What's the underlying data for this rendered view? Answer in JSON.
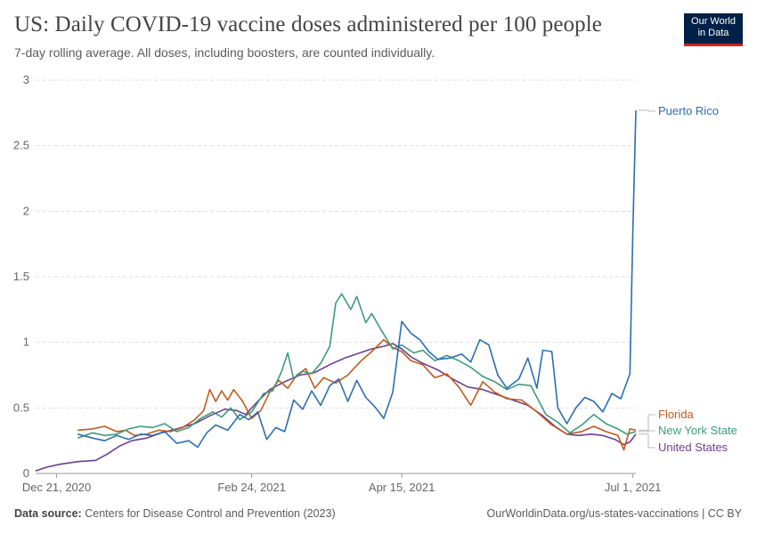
{
  "header": {
    "title": "US: Daily COVID-19 vaccine doses administered per 100 people",
    "subtitle": "7-day rolling average. All doses, including boosters, are counted individually."
  },
  "logo": {
    "line1": "Our World",
    "line2": "in Data"
  },
  "footer": {
    "source_label": "Data source:",
    "source_text": "Centers for Disease Control and Prevention (2023)",
    "url": "OurWorldinData.org/us-states-vaccinations | CC BY"
  },
  "chart_data": {
    "type": "line",
    "title": "US: Daily COVID-19 vaccine doses administered per 100 people",
    "subtitle": "7-day rolling average. All doses, including boosters, are counted individually.",
    "xlabel": "",
    "ylabel": "",
    "x_range": [
      "2020-12-14",
      "2021-07-02"
    ],
    "ylim": [
      0,
      3
    ],
    "yticks": [
      0,
      0.5,
      1,
      1.5,
      2,
      2.5,
      3
    ],
    "ytick_labels": [
      "0",
      "0.5",
      "1",
      "1.5",
      "2",
      "2.5",
      "3"
    ],
    "xticks": [
      {
        "date": "2020-12-21",
        "label": "Dec 21, 2020"
      },
      {
        "date": "2021-02-24",
        "label": "Feb 24, 2021"
      },
      {
        "date": "2021-04-15",
        "label": "Apr 15, 2021"
      },
      {
        "date": "2021-07-01",
        "label": "Jul 1, 2021"
      }
    ],
    "grid": true,
    "legend_position": "right (line-end labels)",
    "series": [
      {
        "name": "United States",
        "color": "#6d3e91",
        "points": [
          [
            "2020-12-14",
            0.02
          ],
          [
            "2020-12-18",
            0.05
          ],
          [
            "2020-12-22",
            0.07
          ],
          [
            "2020-12-28",
            0.09
          ],
          [
            "2021-01-03",
            0.1
          ],
          [
            "2021-01-07",
            0.15
          ],
          [
            "2021-01-11",
            0.21
          ],
          [
            "2021-01-15",
            0.25
          ],
          [
            "2021-01-20",
            0.27
          ],
          [
            "2021-01-25",
            0.31
          ],
          [
            "2021-01-30",
            0.34
          ],
          [
            "2021-02-05",
            0.38
          ],
          [
            "2021-02-10",
            0.44
          ],
          [
            "2021-02-15",
            0.49
          ],
          [
            "2021-02-19",
            0.48
          ],
          [
            "2021-02-22",
            0.45
          ],
          [
            "2021-02-26",
            0.55
          ],
          [
            "2021-03-02",
            0.64
          ],
          [
            "2021-03-07",
            0.7
          ],
          [
            "2021-03-12",
            0.75
          ],
          [
            "2021-03-17",
            0.77
          ],
          [
            "2021-03-22",
            0.83
          ],
          [
            "2021-03-27",
            0.88
          ],
          [
            "2021-04-01",
            0.92
          ],
          [
            "2021-04-05",
            0.95
          ],
          [
            "2021-04-09",
            0.97
          ],
          [
            "2021-04-12",
            0.99
          ],
          [
            "2021-04-15",
            0.95
          ],
          [
            "2021-04-18",
            0.89
          ],
          [
            "2021-04-22",
            0.84
          ],
          [
            "2021-04-27",
            0.79
          ],
          [
            "2021-05-02",
            0.72
          ],
          [
            "2021-05-07",
            0.66
          ],
          [
            "2021-05-12",
            0.64
          ],
          [
            "2021-05-17",
            0.6
          ],
          [
            "2021-05-22",
            0.56
          ],
          [
            "2021-05-27",
            0.52
          ],
          [
            "2021-06-01",
            0.44
          ],
          [
            "2021-06-05",
            0.36
          ],
          [
            "2021-06-09",
            0.3
          ],
          [
            "2021-06-13",
            0.29
          ],
          [
            "2021-06-17",
            0.3
          ],
          [
            "2021-06-21",
            0.29
          ],
          [
            "2021-06-25",
            0.26
          ],
          [
            "2021-06-28",
            0.22
          ],
          [
            "2021-06-30",
            0.24
          ],
          [
            "2021-07-02",
            0.3
          ]
        ]
      },
      {
        "name": "Florida",
        "color": "#c15a1c",
        "points": [
          [
            "2020-12-28",
            0.33
          ],
          [
            "2021-01-02",
            0.34
          ],
          [
            "2021-01-06",
            0.36
          ],
          [
            "2021-01-10",
            0.32
          ],
          [
            "2021-01-13",
            0.33
          ],
          [
            "2021-01-16",
            0.29
          ],
          [
            "2021-01-20",
            0.3
          ],
          [
            "2021-01-24",
            0.33
          ],
          [
            "2021-01-28",
            0.32
          ],
          [
            "2021-02-01",
            0.35
          ],
          [
            "2021-02-05",
            0.41
          ],
          [
            "2021-02-08",
            0.48
          ],
          [
            "2021-02-10",
            0.64
          ],
          [
            "2021-02-12",
            0.55
          ],
          [
            "2021-02-14",
            0.63
          ],
          [
            "2021-02-16",
            0.56
          ],
          [
            "2021-02-18",
            0.64
          ],
          [
            "2021-02-21",
            0.55
          ],
          [
            "2021-02-24",
            0.42
          ],
          [
            "2021-02-27",
            0.48
          ],
          [
            "2021-03-02",
            0.62
          ],
          [
            "2021-03-05",
            0.71
          ],
          [
            "2021-03-08",
            0.65
          ],
          [
            "2021-03-11",
            0.75
          ],
          [
            "2021-03-14",
            0.8
          ],
          [
            "2021-03-17",
            0.65
          ],
          [
            "2021-03-20",
            0.73
          ],
          [
            "2021-03-24",
            0.69
          ],
          [
            "2021-03-28",
            0.75
          ],
          [
            "2021-04-01",
            0.85
          ],
          [
            "2021-04-05",
            0.93
          ],
          [
            "2021-04-09",
            1.02
          ],
          [
            "2021-04-12",
            0.96
          ],
          [
            "2021-04-15",
            0.93
          ],
          [
            "2021-04-18",
            0.86
          ],
          [
            "2021-04-22",
            0.83
          ],
          [
            "2021-04-26",
            0.73
          ],
          [
            "2021-04-30",
            0.76
          ],
          [
            "2021-05-04",
            0.66
          ],
          [
            "2021-05-08",
            0.52
          ],
          [
            "2021-05-12",
            0.7
          ],
          [
            "2021-05-16",
            0.62
          ],
          [
            "2021-05-20",
            0.57
          ],
          [
            "2021-05-25",
            0.56
          ],
          [
            "2021-05-30",
            0.47
          ],
          [
            "2021-06-04",
            0.37
          ],
          [
            "2021-06-09",
            0.3
          ],
          [
            "2021-06-14",
            0.32
          ],
          [
            "2021-06-18",
            0.36
          ],
          [
            "2021-06-22",
            0.32
          ],
          [
            "2021-06-26",
            0.29
          ],
          [
            "2021-06-28",
            0.18
          ],
          [
            "2021-06-30",
            0.34
          ],
          [
            "2021-07-02",
            0.33
          ]
        ]
      },
      {
        "name": "New York State",
        "color": "#3c9c7b",
        "points": [
          [
            "2020-12-28",
            0.27
          ],
          [
            "2021-01-02",
            0.31
          ],
          [
            "2021-01-06",
            0.29
          ],
          [
            "2021-01-10",
            0.3
          ],
          [
            "2021-01-14",
            0.34
          ],
          [
            "2021-01-18",
            0.36
          ],
          [
            "2021-01-22",
            0.35
          ],
          [
            "2021-01-26",
            0.38
          ],
          [
            "2021-01-30",
            0.32
          ],
          [
            "2021-02-03",
            0.35
          ],
          [
            "2021-02-07",
            0.42
          ],
          [
            "2021-02-11",
            0.47
          ],
          [
            "2021-02-14",
            0.43
          ],
          [
            "2021-02-17",
            0.5
          ],
          [
            "2021-02-20",
            0.41
          ],
          [
            "2021-02-24",
            0.47
          ],
          [
            "2021-02-28",
            0.61
          ],
          [
            "2021-03-03",
            0.63
          ],
          [
            "2021-03-06",
            0.78
          ],
          [
            "2021-03-08",
            0.92
          ],
          [
            "2021-03-10",
            0.72
          ],
          [
            "2021-03-13",
            0.78
          ],
          [
            "2021-03-16",
            0.76
          ],
          [
            "2021-03-19",
            0.84
          ],
          [
            "2021-03-22",
            0.97
          ],
          [
            "2021-03-24",
            1.3
          ],
          [
            "2021-03-26",
            1.37
          ],
          [
            "2021-03-29",
            1.25
          ],
          [
            "2021-03-31",
            1.35
          ],
          [
            "2021-04-03",
            1.15
          ],
          [
            "2021-04-05",
            1.22
          ],
          [
            "2021-04-08",
            1.1
          ],
          [
            "2021-04-12",
            0.95
          ],
          [
            "2021-04-15",
            0.98
          ],
          [
            "2021-04-19",
            0.92
          ],
          [
            "2021-04-22",
            0.94
          ],
          [
            "2021-04-26",
            0.86
          ],
          [
            "2021-04-30",
            0.9
          ],
          [
            "2021-05-04",
            0.86
          ],
          [
            "2021-05-08",
            0.81
          ],
          [
            "2021-05-12",
            0.74
          ],
          [
            "2021-05-16",
            0.7
          ],
          [
            "2021-05-20",
            0.64
          ],
          [
            "2021-05-24",
            0.68
          ],
          [
            "2021-05-28",
            0.67
          ],
          [
            "2021-06-02",
            0.45
          ],
          [
            "2021-06-06",
            0.39
          ],
          [
            "2021-06-10",
            0.31
          ],
          [
            "2021-06-14",
            0.37
          ],
          [
            "2021-06-18",
            0.45
          ],
          [
            "2021-06-22",
            0.38
          ],
          [
            "2021-06-26",
            0.34
          ],
          [
            "2021-06-29",
            0.3
          ],
          [
            "2021-07-02",
            0.32
          ]
        ]
      },
      {
        "name": "Puerto Rico",
        "color": "#2c6db5",
        "points": [
          [
            "2020-12-28",
            0.3
          ],
          [
            "2021-01-02",
            0.27
          ],
          [
            "2021-01-06",
            0.25
          ],
          [
            "2021-01-10",
            0.29
          ],
          [
            "2021-01-14",
            0.26
          ],
          [
            "2021-01-18",
            0.3
          ],
          [
            "2021-01-22",
            0.29
          ],
          [
            "2021-01-26",
            0.32
          ],
          [
            "2021-01-30",
            0.23
          ],
          [
            "2021-02-03",
            0.25
          ],
          [
            "2021-02-06",
            0.2
          ],
          [
            "2021-02-09",
            0.31
          ],
          [
            "2021-02-12",
            0.37
          ],
          [
            "2021-02-16",
            0.33
          ],
          [
            "2021-02-20",
            0.45
          ],
          [
            "2021-02-23",
            0.41
          ],
          [
            "2021-02-26",
            0.47
          ],
          [
            "2021-03-01",
            0.26
          ],
          [
            "2021-03-04",
            0.35
          ],
          [
            "2021-03-07",
            0.32
          ],
          [
            "2021-03-10",
            0.56
          ],
          [
            "2021-03-13",
            0.49
          ],
          [
            "2021-03-16",
            0.63
          ],
          [
            "2021-03-19",
            0.52
          ],
          [
            "2021-03-22",
            0.67
          ],
          [
            "2021-03-25",
            0.72
          ],
          [
            "2021-03-28",
            0.55
          ],
          [
            "2021-03-31",
            0.71
          ],
          [
            "2021-04-03",
            0.58
          ],
          [
            "2021-04-06",
            0.51
          ],
          [
            "2021-04-09",
            0.42
          ],
          [
            "2021-04-12",
            0.62
          ],
          [
            "2021-04-15",
            1.16
          ],
          [
            "2021-04-18",
            1.07
          ],
          [
            "2021-04-21",
            1.02
          ],
          [
            "2021-04-24",
            0.93
          ],
          [
            "2021-04-27",
            0.87
          ],
          [
            "2021-05-01",
            0.88
          ],
          [
            "2021-05-05",
            0.91
          ],
          [
            "2021-05-08",
            0.85
          ],
          [
            "2021-05-11",
            1.02
          ],
          [
            "2021-05-14",
            0.98
          ],
          [
            "2021-05-17",
            0.75
          ],
          [
            "2021-05-20",
            0.65
          ],
          [
            "2021-05-24",
            0.72
          ],
          [
            "2021-05-27",
            0.88
          ],
          [
            "2021-05-30",
            0.65
          ],
          [
            "2021-06-01",
            0.94
          ],
          [
            "2021-06-04",
            0.93
          ],
          [
            "2021-06-06",
            0.5
          ],
          [
            "2021-06-09",
            0.38
          ],
          [
            "2021-06-12",
            0.5
          ],
          [
            "2021-06-15",
            0.58
          ],
          [
            "2021-06-18",
            0.55
          ],
          [
            "2021-06-21",
            0.47
          ],
          [
            "2021-06-24",
            0.61
          ],
          [
            "2021-06-27",
            0.57
          ],
          [
            "2021-06-30",
            0.76
          ],
          [
            "2021-07-01",
            1.85
          ],
          [
            "2021-07-02",
            2.77
          ]
        ]
      }
    ]
  }
}
